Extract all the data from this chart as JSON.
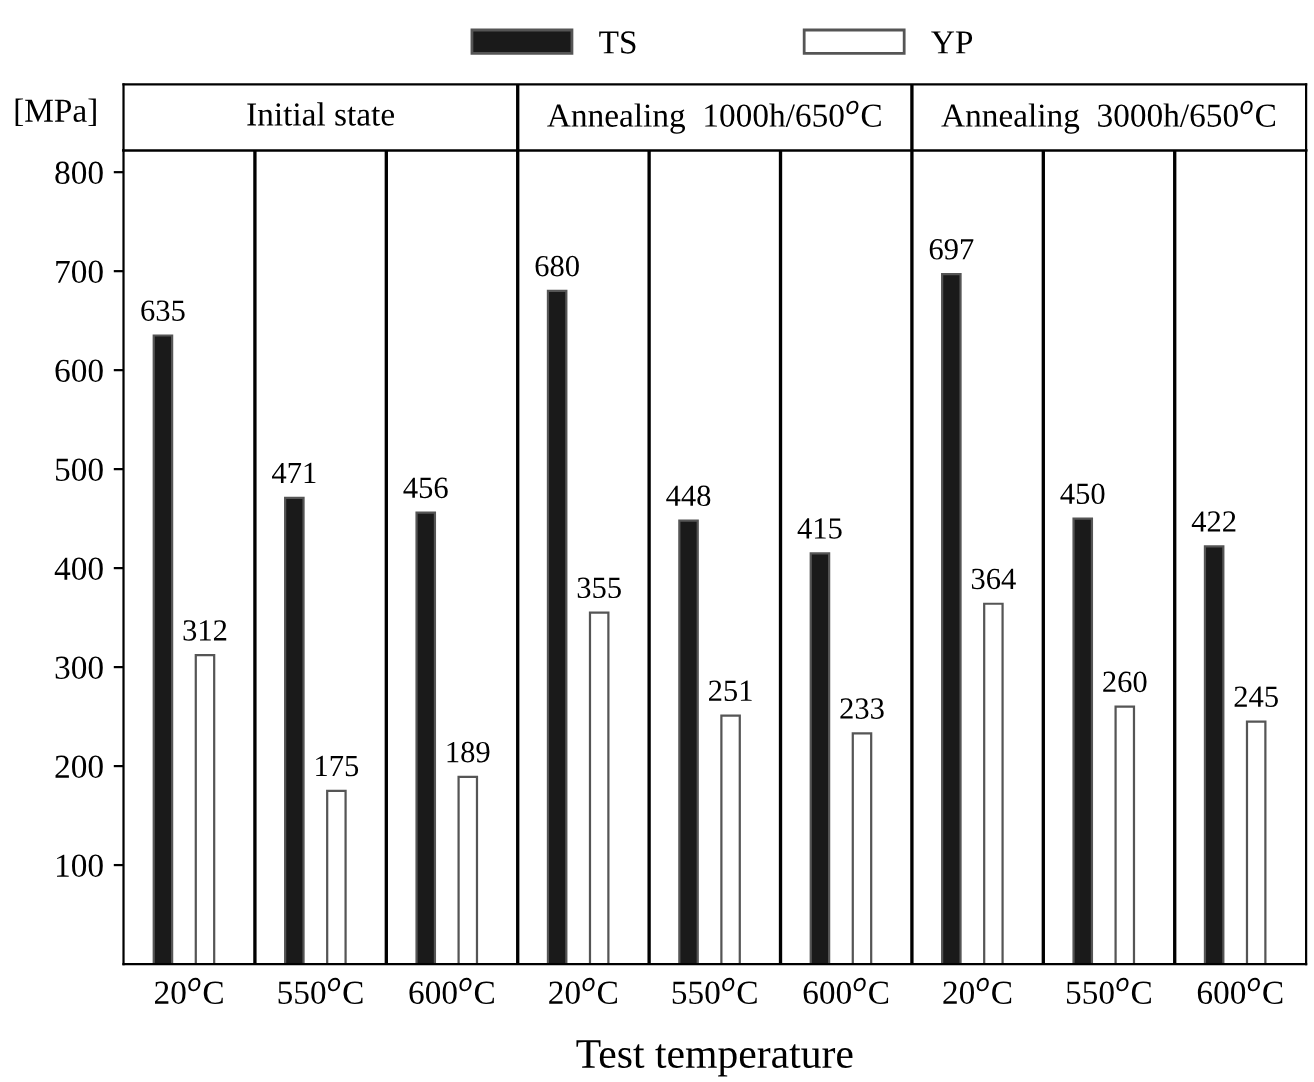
{
  "chart_data": {
    "type": "bar",
    "xlabel": "Test temperature",
    "ylabel": "[MPa]",
    "categories": [
      "20$^{o}$C",
      "550$^{o}$C",
      "600$^{o}$C",
      "20$^{o}$C",
      "550$^{o}$C",
      "600$^{o}$C",
      "20$^{o}$C",
      "550$^{o}$C",
      "600$^{o}$C"
    ],
    "series": [
      {
        "name": "TS",
        "color": "#1a1a1a",
        "values": [
          635,
          471,
          456,
          680,
          448,
          415,
          697,
          450,
          422
        ]
      },
      {
        "name": "YP",
        "color": "#ffffff",
        "values": [
          312,
          175,
          189,
          355,
          251,
          233,
          364,
          260,
          245
        ]
      }
    ],
    "annotations": [
      "Initial state",
      "Annealing  1000h/650$^{o}$C",
      "Annealing  3000h/650$^{o}$C"
    ],
    "ylim": [
      0,
      822
    ],
    "yticks": [
      100,
      200,
      300,
      400,
      500,
      600,
      700,
      800
    ],
    "data_labels": true,
    "legend": "top",
    "grid": false
  }
}
